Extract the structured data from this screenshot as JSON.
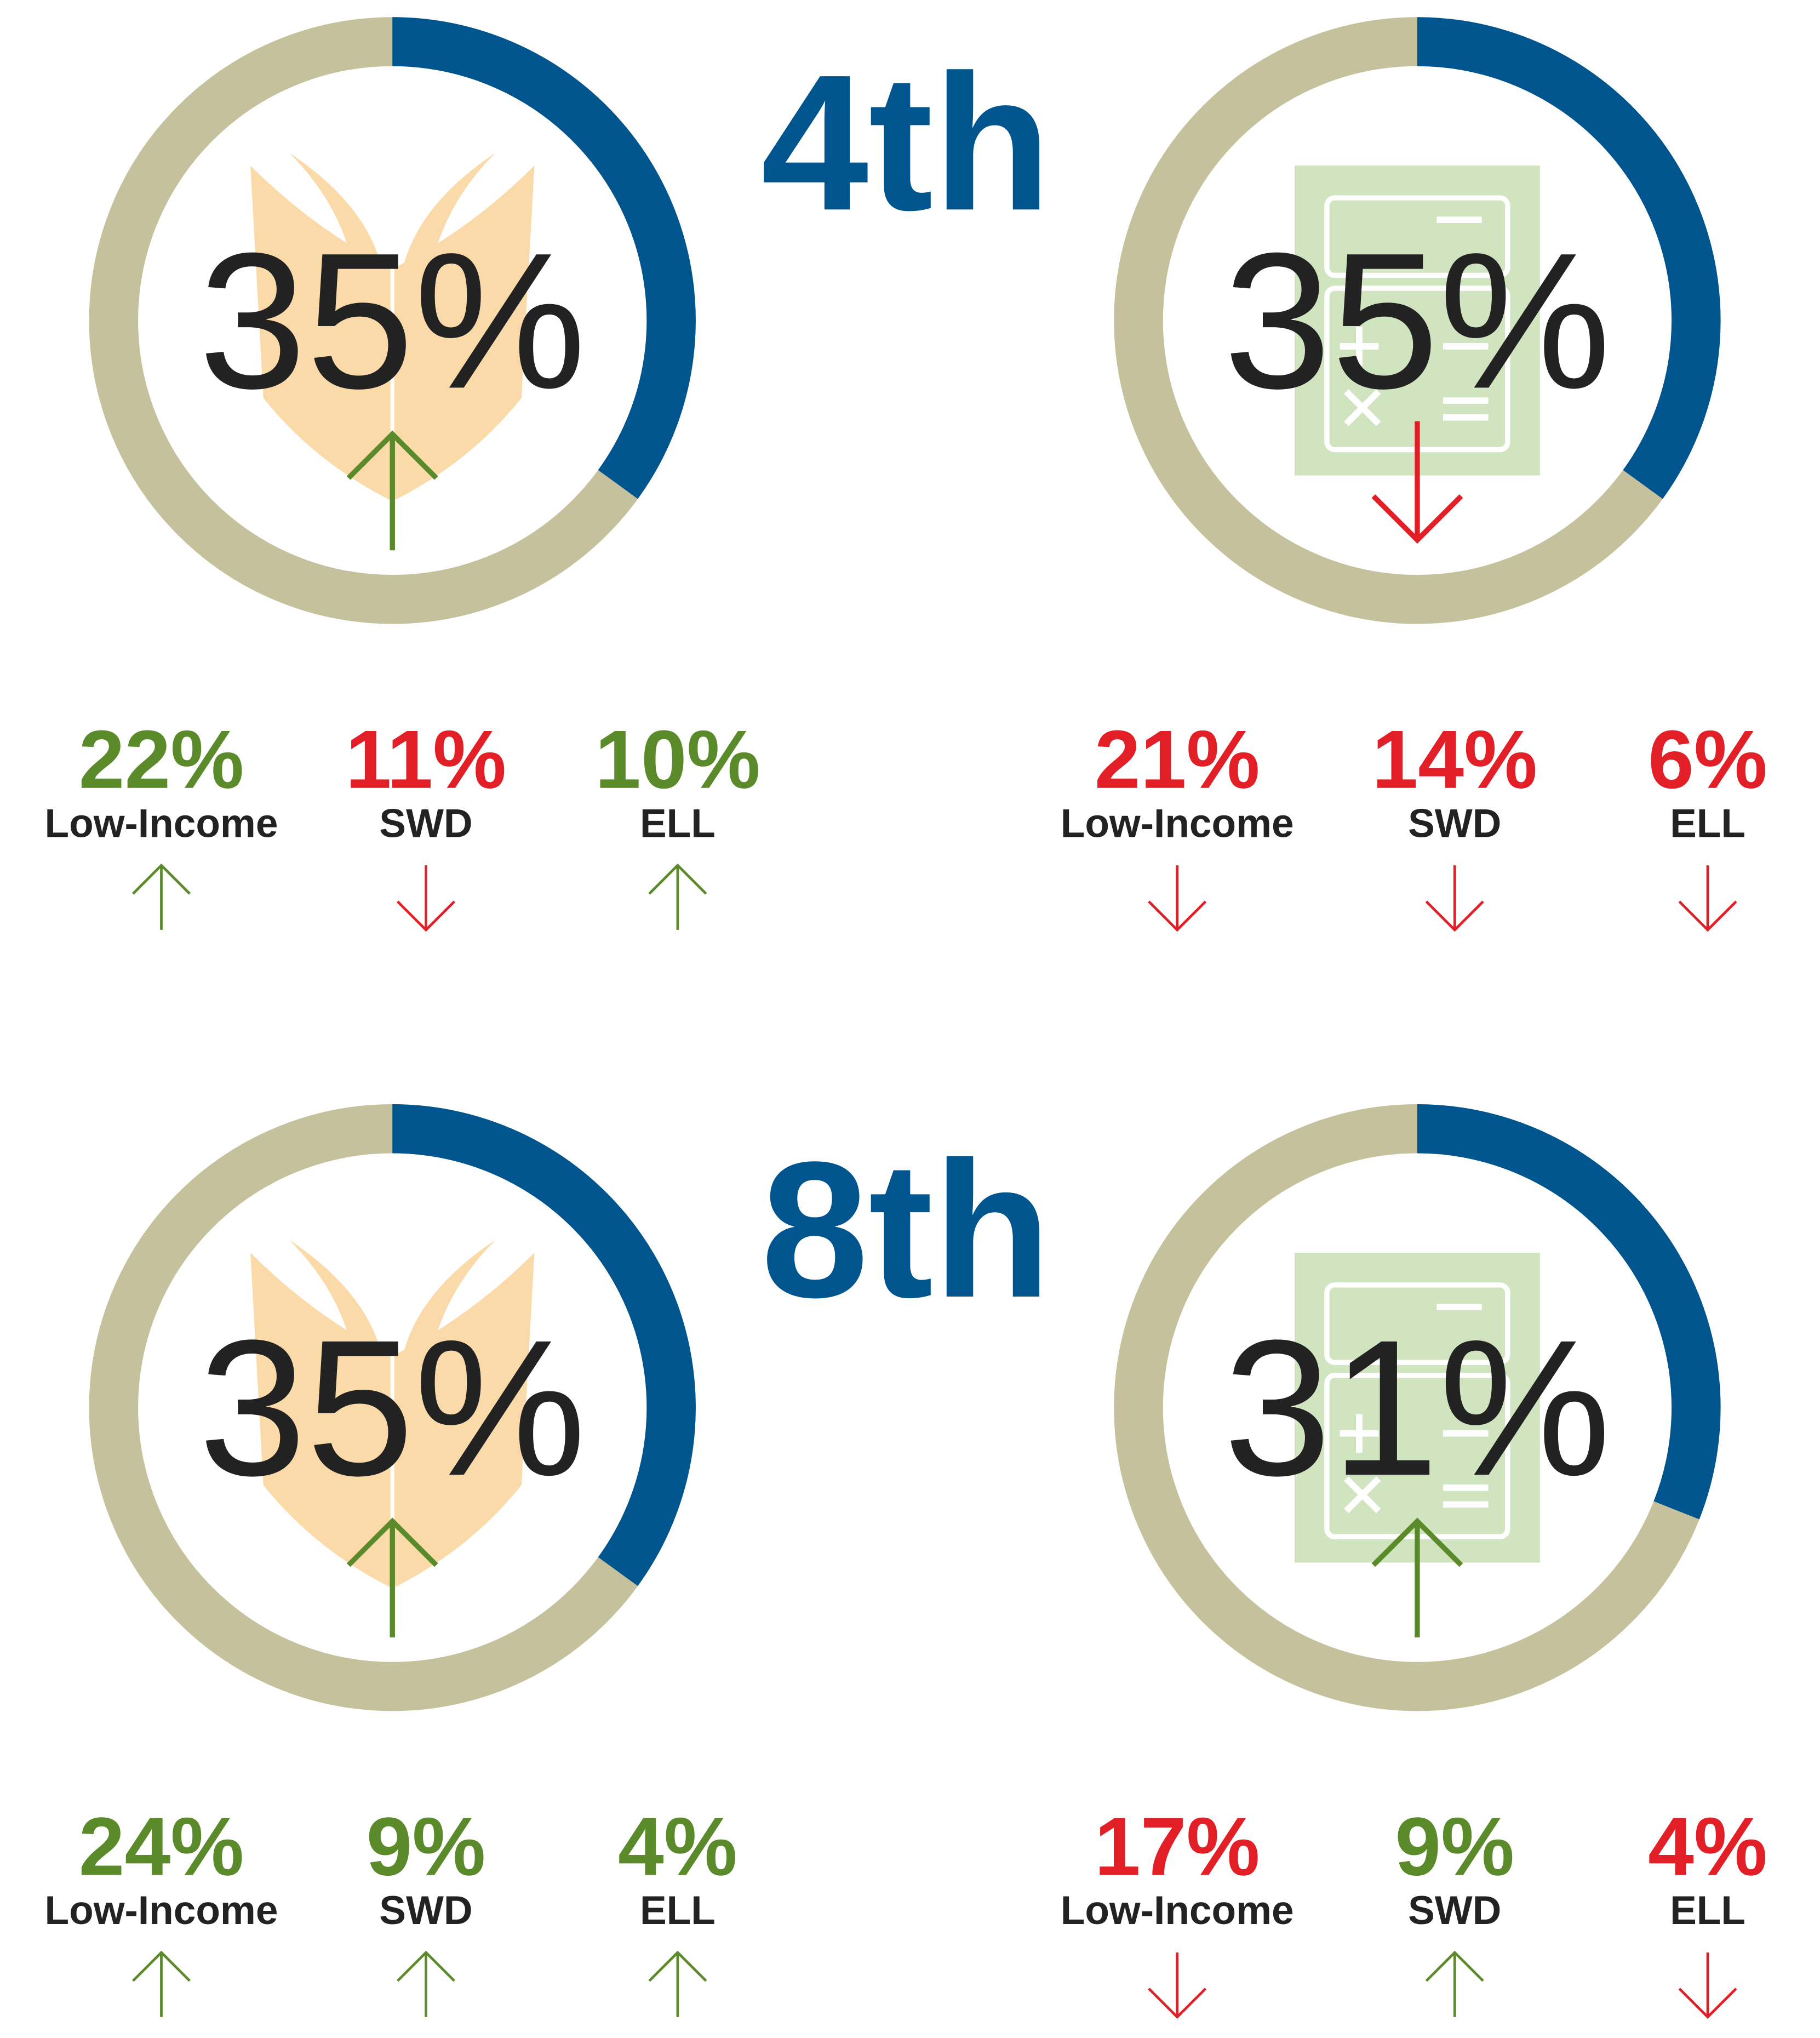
{
  "chart_data": [
    {
      "type": "donut",
      "title": "4th",
      "charts": [
        {
          "icon": "book",
          "value": 35,
          "value_label": "35%",
          "trend": "up",
          "groups": [
            {
              "name": "Low-Income",
              "value": 22,
              "value_label": "22%",
              "trend": "up"
            },
            {
              "name": "SWD",
              "value": 11,
              "value_label": "11%",
              "trend": "down"
            },
            {
              "name": "ELL",
              "value": 10,
              "value_label": "10%",
              "trend": "up"
            }
          ]
        },
        {
          "icon": "calculator",
          "value": 35,
          "value_label": "35%",
          "trend": "down",
          "groups": [
            {
              "name": "Low-Income",
              "value": 21,
              "value_label": "21%",
              "trend": "down"
            },
            {
              "name": "SWD",
              "value": 14,
              "value_label": "14%",
              "trend": "down"
            },
            {
              "name": "ELL",
              "value": 6,
              "value_label": "6%",
              "trend": "down"
            }
          ]
        }
      ]
    },
    {
      "type": "donut",
      "title": "8th",
      "charts": [
        {
          "icon": "book",
          "value": 35,
          "value_label": "35%",
          "trend": "up",
          "groups": [
            {
              "name": "Low-Income",
              "value": 24,
              "value_label": "24%",
              "trend": "up"
            },
            {
              "name": "SWD",
              "value": 9,
              "value_label": "9%",
              "trend": "up"
            },
            {
              "name": "ELL",
              "value": 4,
              "value_label": "4%",
              "trend": "up"
            }
          ]
        },
        {
          "icon": "calculator",
          "value": 31,
          "value_label": "31%",
          "trend": "up",
          "groups": [
            {
              "name": "Low-Income",
              "value": 17,
              "value_label": "17%",
              "trend": "down"
            },
            {
              "name": "SWD",
              "value": 9,
              "value_label": "9%",
              "trend": "up"
            },
            {
              "name": "ELL",
              "value": 4,
              "value_label": "4%",
              "trend": "down"
            }
          ]
        }
      ]
    }
  ],
  "colors": {
    "ring": "#00558f",
    "track": "#c5c19c",
    "up": "#5b8a2b",
    "down": "#e21f26",
    "title": "#00558f",
    "book": "#fbdaa9",
    "calculator": "#d0e4bf"
  },
  "scale_max": 100
}
